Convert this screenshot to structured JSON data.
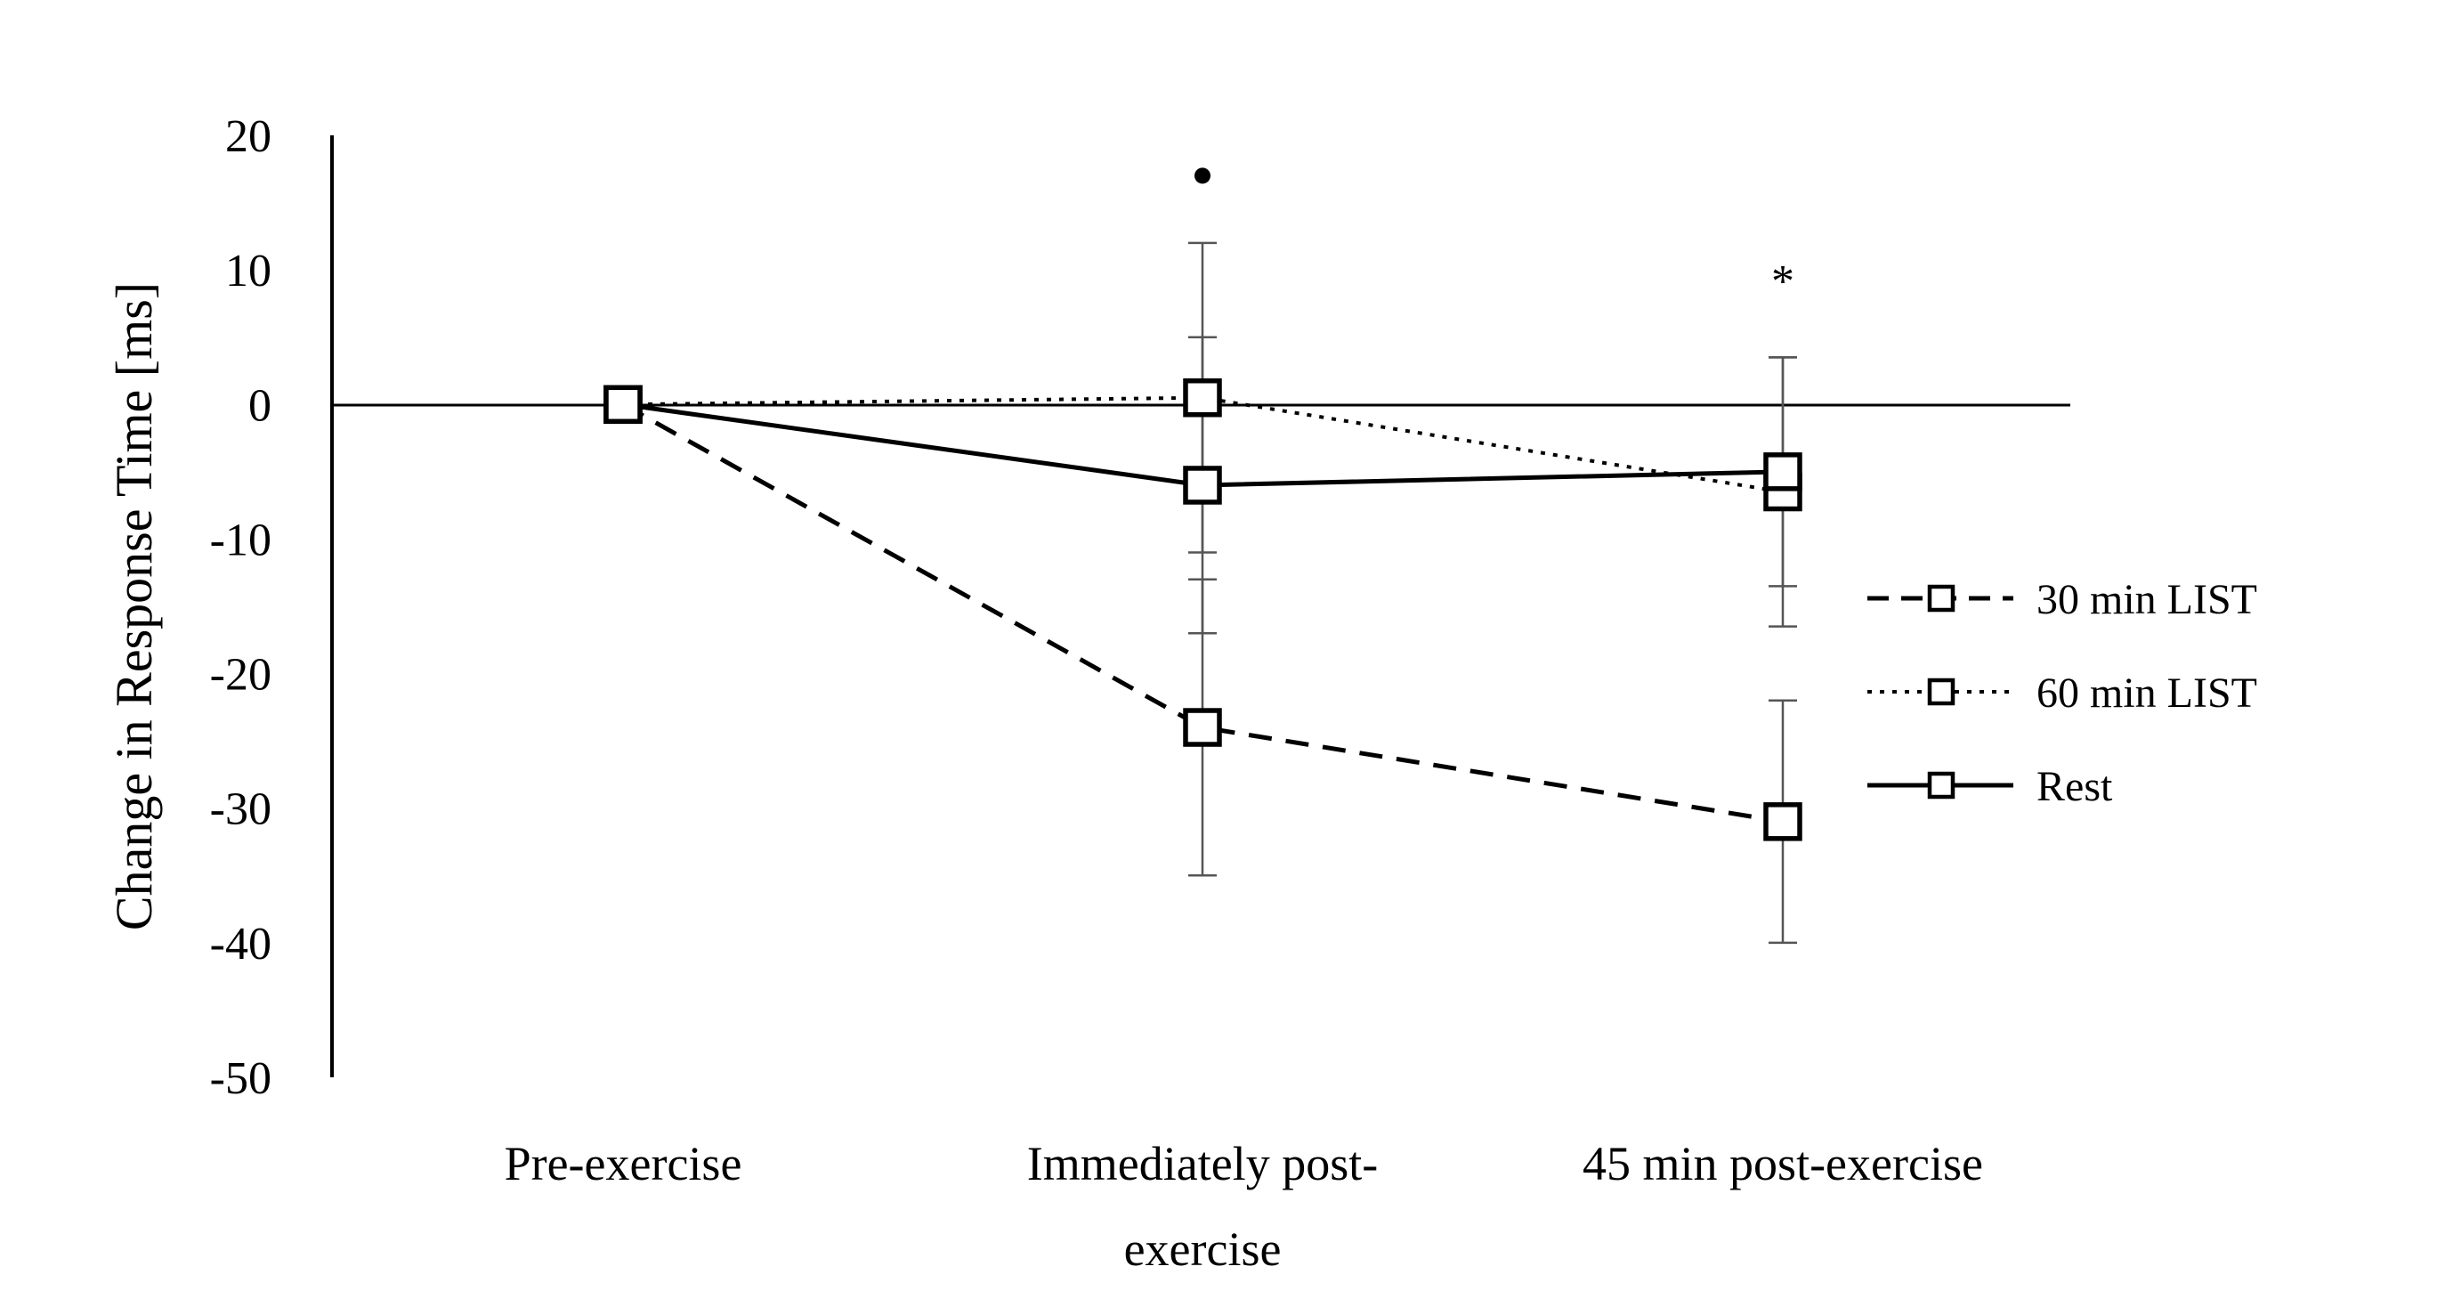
{
  "chart_data": {
    "type": "line",
    "title": "",
    "xlabel": "",
    "ylabel": "Change in Response Time [ms]",
    "ylim": [
      -50,
      20
    ],
    "yticks": [
      20,
      10,
      0,
      -10,
      -20,
      -30,
      -40,
      -50
    ],
    "categories": [
      {
        "lines": [
          "Pre-exercise"
        ]
      },
      {
        "lines": [
          "Immediately post-",
          "exercise"
        ]
      },
      {
        "lines": [
          "45 min post-exercise"
        ]
      }
    ],
    "series": [
      {
        "name": "30 min LIST",
        "line_style": "dashed",
        "values": [
          0,
          -24,
          -31
        ],
        "error": [
          null,
          11,
          9
        ]
      },
      {
        "name": "60 min LIST",
        "line_style": "dotted",
        "values": [
          0,
          0.5,
          -6.5
        ],
        "error": [
          null,
          11.5,
          10
        ]
      },
      {
        "name": "Rest",
        "line_style": "solid",
        "values": [
          0,
          -6,
          -5
        ],
        "error": [
          null,
          11,
          8.5
        ]
      }
    ],
    "annotations": [
      {
        "text": "•",
        "category_index": 1,
        "y": 17
      },
      {
        "text": "*",
        "category_index": 2,
        "y": 10
      }
    ],
    "legend_position": "right",
    "grid": false,
    "color": "#000000"
  }
}
